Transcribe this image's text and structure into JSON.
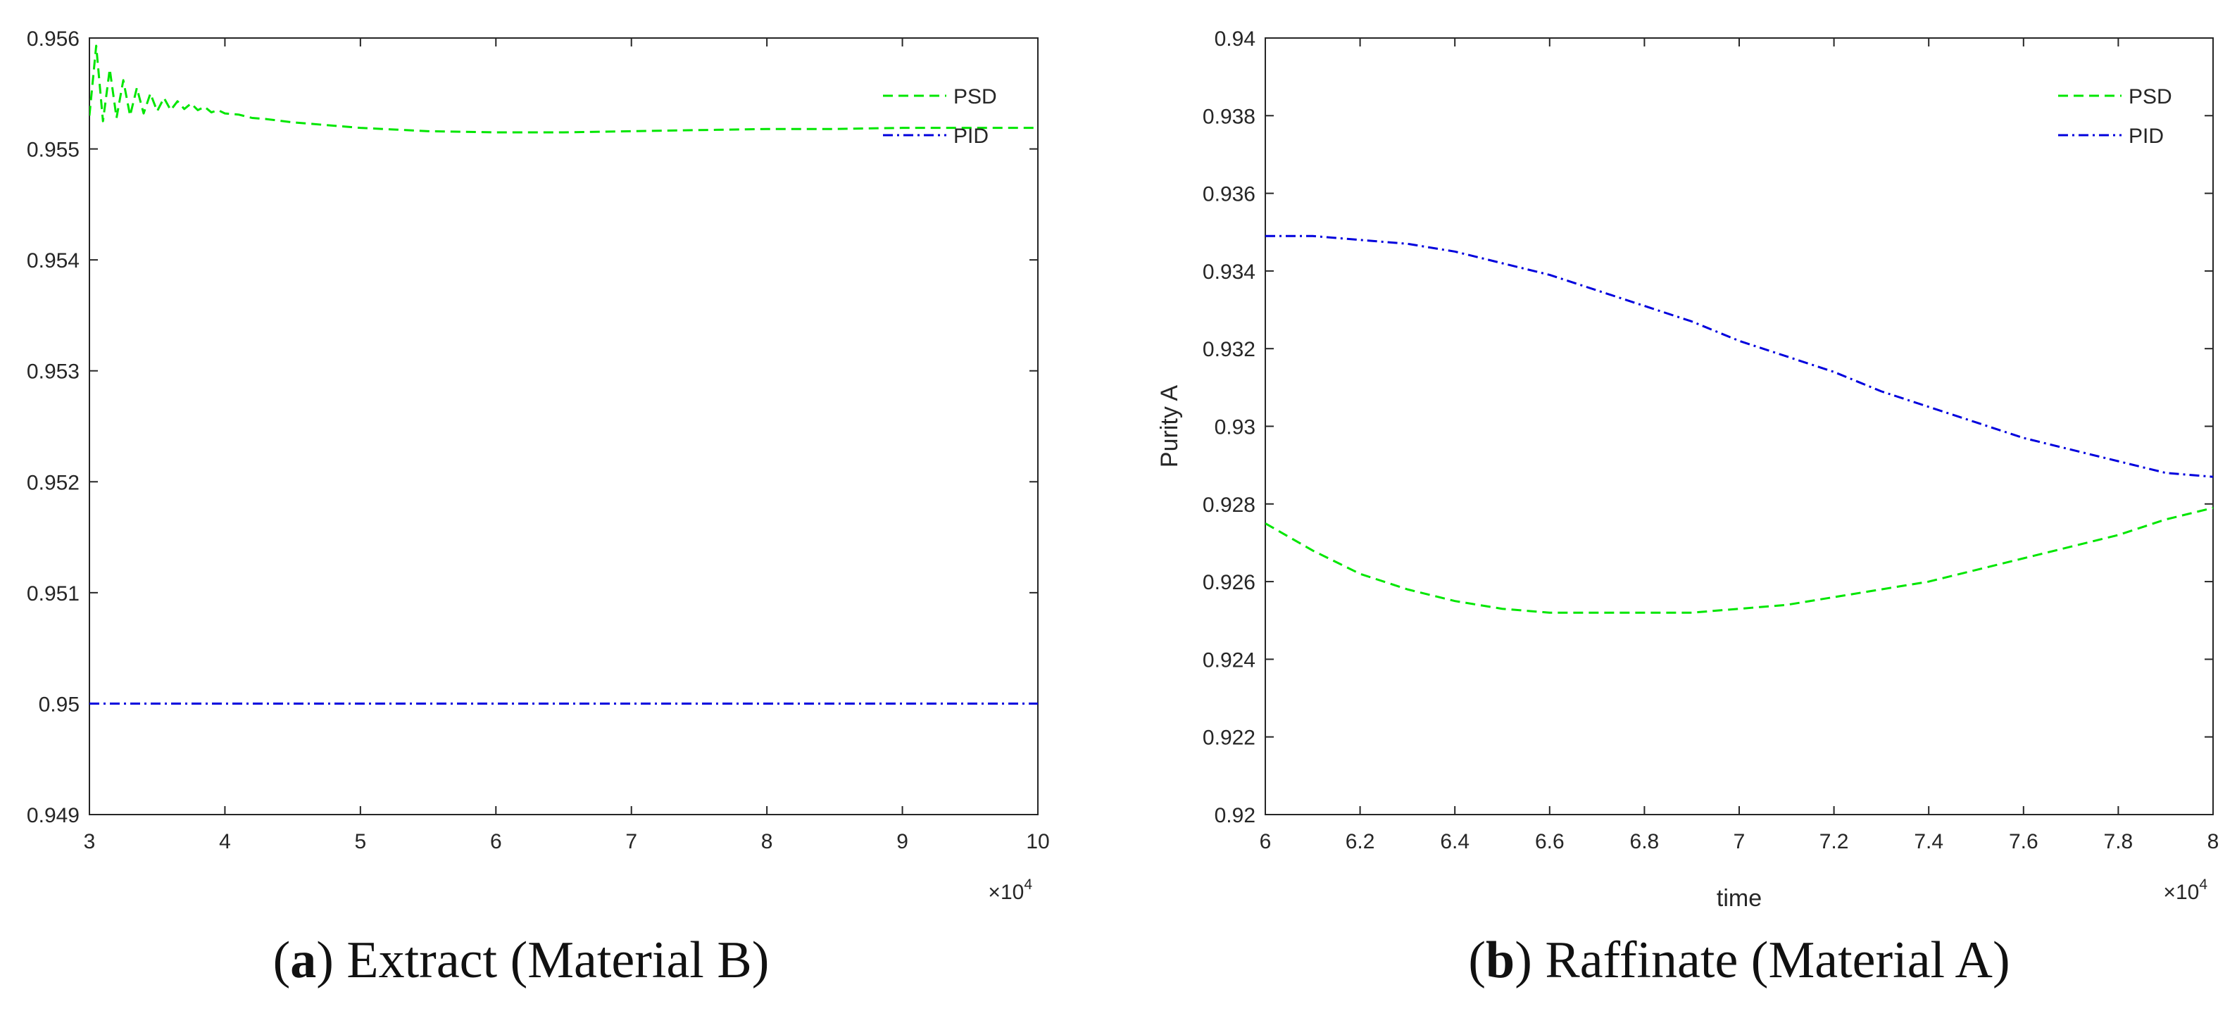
{
  "chart_data": [
    {
      "id": "a",
      "type": "line",
      "title": "",
      "xlabel": "",
      "ylabel": "",
      "x_exponent_label": "×10",
      "x_exponent_power": "4",
      "xlim": [
        3,
        10
      ],
      "ylim": [
        0.949,
        0.956
      ],
      "xticks": [
        "3",
        "4",
        "5",
        "6",
        "7",
        "8",
        "9",
        "10"
      ],
      "yticks": [
        "0.949",
        "0.95",
        "0.951",
        "0.952",
        "0.953",
        "0.954",
        "0.955",
        "0.956"
      ],
      "grid": false,
      "legend": "top-right",
      "series": [
        {
          "name": "PSD",
          "color": "#00e600",
          "style": "dashed",
          "x": [
            3.0,
            3.05,
            3.1,
            3.15,
            3.2,
            3.25,
            3.3,
            3.35,
            3.4,
            3.45,
            3.5,
            3.55,
            3.6,
            3.65,
            3.7,
            3.75,
            3.8,
            3.85,
            3.9,
            3.95,
            4.0,
            4.1,
            4.2,
            4.3,
            4.5,
            5.0,
            5.5,
            6.0,
            6.5,
            7.0,
            7.5,
            8.0,
            8.5,
            9.0,
            9.5,
            10.0
          ],
          "values": [
            0.9553,
            0.95593,
            0.95525,
            0.95572,
            0.95528,
            0.95562,
            0.9553,
            0.95555,
            0.95532,
            0.9555,
            0.95534,
            0.95546,
            0.95535,
            0.95543,
            0.95536,
            0.95541,
            0.95535,
            0.95538,
            0.95533,
            0.95535,
            0.95532,
            0.95531,
            0.95528,
            0.95527,
            0.95524,
            0.95519,
            0.95516,
            0.95515,
            0.95515,
            0.95516,
            0.95517,
            0.95518,
            0.95518,
            0.95519,
            0.95519,
            0.95519
          ]
        },
        {
          "name": "PID",
          "color": "#0000dd",
          "style": "dashdot",
          "x": [
            3,
            4,
            5,
            6,
            7,
            8,
            9,
            10
          ],
          "values": [
            0.95,
            0.95,
            0.95,
            0.95,
            0.95,
            0.95,
            0.95,
            0.95
          ]
        }
      ],
      "caption_letter": "a",
      "caption_text": "Extract (Material B)"
    },
    {
      "id": "b",
      "type": "line",
      "title": "",
      "xlabel": "time",
      "ylabel": "Purity A",
      "x_exponent_label": "×10",
      "x_exponent_power": "4",
      "xlim": [
        6,
        8
      ],
      "ylim": [
        0.92,
        0.94
      ],
      "xticks": [
        "6",
        "6.2",
        "6.4",
        "6.6",
        "6.8",
        "7",
        "7.2",
        "7.4",
        "7.6",
        "7.8",
        "8"
      ],
      "yticks": [
        "0.92",
        "0.922",
        "0.924",
        "0.926",
        "0.928",
        "0.93",
        "0.932",
        "0.934",
        "0.936",
        "0.938",
        "0.94"
      ],
      "grid": false,
      "legend": "top-right",
      "series": [
        {
          "name": "PSD",
          "color": "#00e600",
          "style": "dashed",
          "x": [
            6.0,
            6.1,
            6.2,
            6.3,
            6.4,
            6.5,
            6.6,
            6.7,
            6.8,
            6.9,
            7.0,
            7.1,
            7.2,
            7.3,
            7.4,
            7.5,
            7.6,
            7.7,
            7.8,
            7.9,
            8.0
          ],
          "values": [
            0.9275,
            0.9268,
            0.9262,
            0.9258,
            0.9255,
            0.9253,
            0.9252,
            0.9252,
            0.9252,
            0.9252,
            0.9253,
            0.9254,
            0.9256,
            0.9258,
            0.926,
            0.9263,
            0.9266,
            0.9269,
            0.9272,
            0.9276,
            0.9279
          ]
        },
        {
          "name": "PID",
          "color": "#0000dd",
          "style": "dashdot",
          "x": [
            6.0,
            6.1,
            6.2,
            6.3,
            6.4,
            6.5,
            6.6,
            6.7,
            6.8,
            6.9,
            7.0,
            7.1,
            7.2,
            7.3,
            7.4,
            7.5,
            7.6,
            7.7,
            7.8,
            7.9,
            8.0
          ],
          "values": [
            0.9349,
            0.9349,
            0.9348,
            0.9347,
            0.9345,
            0.9342,
            0.9339,
            0.9335,
            0.9331,
            0.9327,
            0.9322,
            0.9318,
            0.9314,
            0.9309,
            0.9305,
            0.9301,
            0.9297,
            0.9294,
            0.9291,
            0.9288,
            0.9287
          ]
        }
      ],
      "caption_letter": "b",
      "caption_text": "Raffinate (Material A)"
    }
  ]
}
